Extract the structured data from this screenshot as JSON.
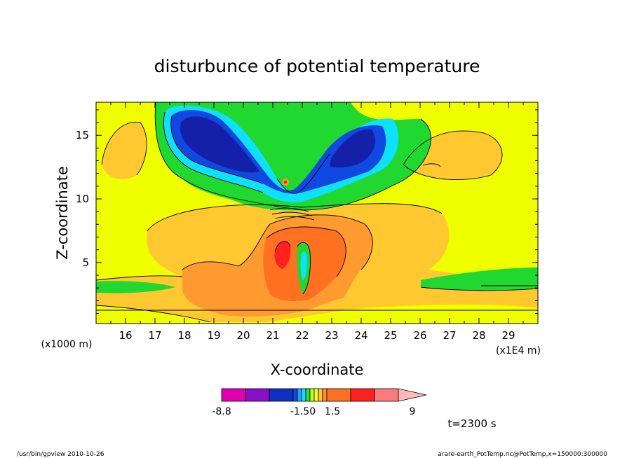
{
  "chart_data": {
    "type": "contour",
    "title": "disturbunce of potential temperature",
    "xlabel": "X-coordinate",
    "ylabel": "Z-coordinate",
    "x_unit_label": "(x1E4 m)",
    "y_unit_label": "(x1000 m)",
    "xlim": [
      15.0,
      30.0
    ],
    "ylim": [
      0.2,
      17.6
    ],
    "x_ticks": [
      16,
      17,
      18,
      19,
      20,
      21,
      22,
      23,
      24,
      25,
      26,
      27,
      28,
      29
    ],
    "y_ticks": [
      5,
      10,
      15
    ],
    "x_tick_labels": [
      "16",
      "17",
      "18",
      "19",
      "20",
      "21",
      "22",
      "23",
      "24",
      "25",
      "26",
      "27",
      "28",
      "29"
    ],
    "y_tick_labels": [
      "5",
      "10",
      "15"
    ],
    "colorbar": {
      "labels": [
        "-8.8",
        "-1.50",
        "1.5",
        "9"
      ],
      "colors": [
        "#e000b0",
        "#8a10c8",
        "#1030c0",
        "#1048e0",
        "#20a0ff",
        "#10e0ff",
        "#30e030",
        "#c0ff20",
        "#f0ff20",
        "#ffc830",
        "#ff9030",
        "#ff7020",
        "#ff2020",
        "#ff7a7a",
        "#ffb8b8"
      ]
    },
    "fill_colors": {
      "background": "#f0ff00",
      "orange_light": "#ffc830",
      "orange": "#ff9a30",
      "orange_dark": "#ff7020",
      "red": "#ff2020",
      "green": "#20d830",
      "cyan": "#10e0ff",
      "blue_mid": "#1048e0",
      "blue_dark": "#1420a8"
    },
    "time_label": "t=2300 s"
  },
  "footer": {
    "left": "/usr/bin/gpview   2010-10-26",
    "right": "arare-earth_PotTemp.nc@PotTemp,x=150000:300000"
  }
}
